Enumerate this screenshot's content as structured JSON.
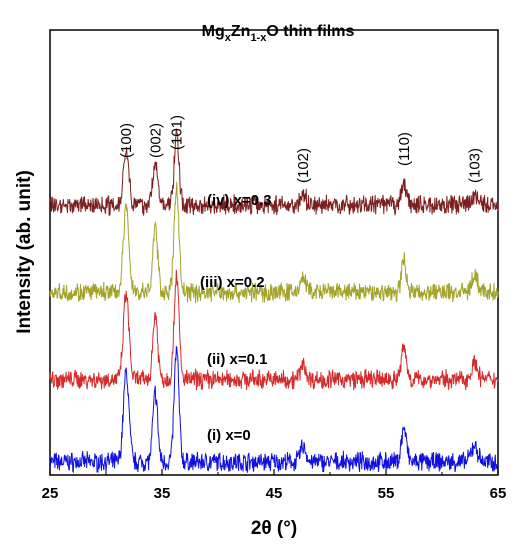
{
  "chart_data": {
    "type": "line",
    "title": {
      "base1": "Mg",
      "sub1": "x",
      "base2": "Zn",
      "sub2": "1-x",
      "base3": "O thin films"
    },
    "xlabel": "2θ (°)",
    "ylabel": "Intensity (ab. unit)",
    "xlim": [
      25,
      65
    ],
    "xticks": [
      "25",
      "35",
      "45",
      "55",
      "65"
    ],
    "peak_labels": [
      {
        "text": "(100)",
        "x": 31.8
      },
      {
        "text": "(002)",
        "x": 34.4
      },
      {
        "text": "(101)",
        "x": 36.3
      },
      {
        "text": "(102)",
        "x": 47.6
      },
      {
        "text": "(110)",
        "x": 56.6
      },
      {
        "text": "(103)",
        "x": 62.9
      }
    ],
    "peaks": [
      {
        "x": 31.8,
        "w": 0.35,
        "h": 0.8
      },
      {
        "x": 34.4,
        "w": 0.3,
        "h": 0.62
      },
      {
        "x": 36.3,
        "w": 0.3,
        "h": 1.0
      },
      {
        "x": 47.6,
        "w": 0.35,
        "h": 0.14
      },
      {
        "x": 56.6,
        "w": 0.32,
        "h": 0.3
      },
      {
        "x": 62.9,
        "w": 0.4,
        "h": 0.15
      }
    ],
    "series": [
      {
        "label": "(i) x=0",
        "color": "#1010e0",
        "offset": 0.0,
        "scale": 1.0
      },
      {
        "label": "(ii) x=0.1",
        "color": "#d42a2a",
        "offset": 0.85,
        "scale": 0.95
      },
      {
        "label": "(iii) x=0.2",
        "color": "#a3a32a",
        "offset": 1.75,
        "scale": 0.95
      },
      {
        "label": "(iv) x=0.3",
        "color": "#7a1e1e",
        "offset": 2.65,
        "scale": 0.62
      }
    ]
  }
}
